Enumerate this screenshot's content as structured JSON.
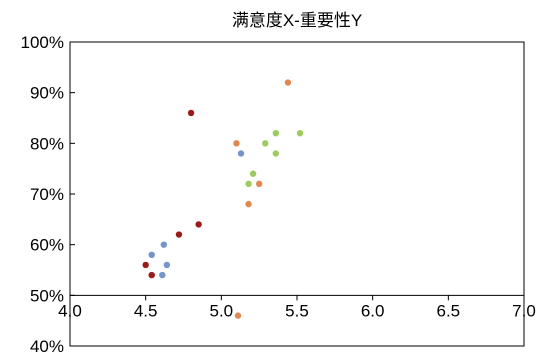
{
  "chart_data": {
    "type": "scatter",
    "title": "满意度X-重要性Y",
    "xlabel": "",
    "ylabel": "",
    "xlim": [
      4.0,
      7.0
    ],
    "ylim": [
      0.4,
      1.0
    ],
    "x_ticks": [
      4.0,
      4.5,
      5.0,
      5.5,
      6.0,
      6.5,
      7.0
    ],
    "x_tick_labels": [
      "4.0",
      "4.5",
      "5.0",
      "5.5",
      "6.0",
      "6.5",
      "7.0"
    ],
    "y_ticks": [
      0.4,
      0.5,
      0.6,
      0.7,
      0.8,
      0.9,
      1.0
    ],
    "y_tick_labels": [
      "40%",
      "50%",
      "60%",
      "70%",
      "80%",
      "90%",
      "100%"
    ],
    "x_axis_at_y": 0.5,
    "grid": false,
    "legend": "none",
    "series": [
      {
        "color": "#9b1b1b",
        "points": [
          [
            4.8,
            0.86
          ],
          [
            4.85,
            0.64
          ],
          [
            4.72,
            0.62
          ],
          [
            4.5,
            0.56
          ],
          [
            4.54,
            0.54
          ]
        ]
      },
      {
        "color": "#7494cc",
        "points": [
          [
            5.13,
            0.78
          ],
          [
            4.62,
            0.6
          ],
          [
            4.54,
            0.58
          ],
          [
            4.64,
            0.56
          ],
          [
            4.61,
            0.54
          ]
        ]
      },
      {
        "color": "#e08850",
        "points": [
          [
            5.44,
            0.92
          ],
          [
            5.1,
            0.8
          ],
          [
            5.25,
            0.72
          ],
          [
            5.18,
            0.68
          ],
          [
            5.11,
            0.46
          ]
        ]
      },
      {
        "color": "#9ccb5e",
        "points": [
          [
            5.36,
            0.82
          ],
          [
            5.52,
            0.82
          ],
          [
            5.29,
            0.8
          ],
          [
            5.36,
            0.78
          ],
          [
            5.21,
            0.74
          ],
          [
            5.18,
            0.72
          ]
        ]
      }
    ]
  }
}
